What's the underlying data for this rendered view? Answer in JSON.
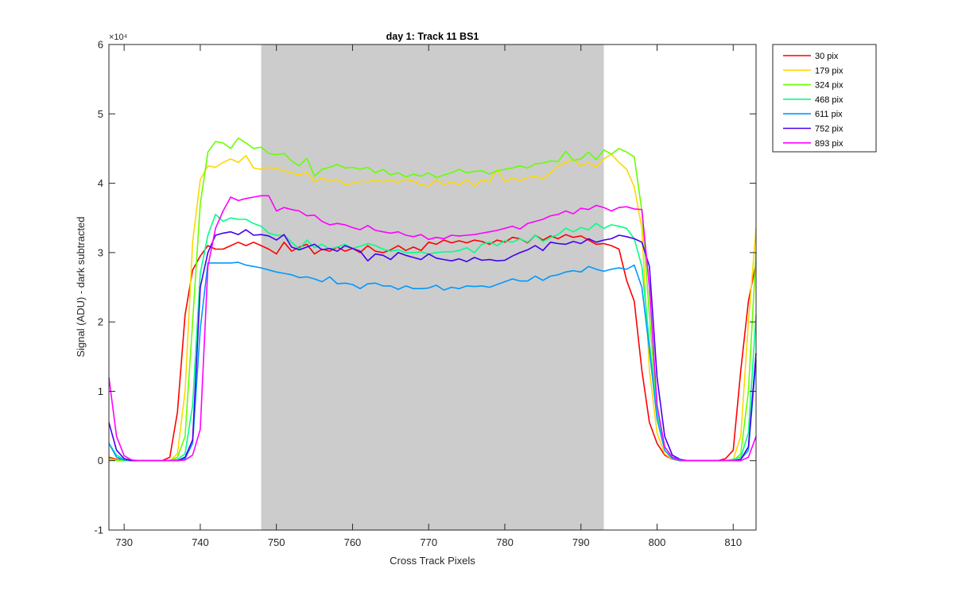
{
  "chart_data": {
    "type": "line",
    "title": "day 1: Track 11  BS1",
    "xlabel": "Cross Track Pixels",
    "ylabel": "Signal (ADU) - dark subtracted",
    "xlim": [
      728,
      813
    ],
    "ylim": [
      -10000,
      60000
    ],
    "exponent_label": "×10⁴",
    "x_ticks": [
      730,
      740,
      750,
      760,
      770,
      780,
      790,
      800,
      810
    ],
    "x_tick_labels": [
      "730",
      "740",
      "750",
      "760",
      "770",
      "780",
      "790",
      "800",
      "810"
    ],
    "y_ticks": [
      -10000,
      0,
      10000,
      20000,
      30000,
      40000,
      50000,
      60000
    ],
    "y_tick_labels": [
      "-1",
      "0",
      "1",
      "2",
      "3",
      "4",
      "5",
      "6"
    ],
    "grid": false,
    "legend_position": "outside-top-right",
    "shaded_region": {
      "x": [
        748,
        793
      ],
      "color": "#cccccc"
    },
    "x": [
      728,
      729,
      730,
      731,
      732,
      733,
      734,
      735,
      736,
      737,
      738,
      739,
      740,
      741,
      742,
      743,
      744,
      745,
      746,
      747,
      748,
      749,
      750,
      751,
      752,
      753,
      754,
      755,
      756,
      757,
      758,
      759,
      760,
      761,
      762,
      763,
      764,
      765,
      766,
      767,
      768,
      769,
      770,
      771,
      772,
      773,
      774,
      775,
      776,
      777,
      778,
      779,
      780,
      781,
      782,
      783,
      784,
      785,
      786,
      787,
      788,
      789,
      790,
      791,
      792,
      793,
      794,
      795,
      796,
      797,
      798,
      799,
      800,
      801,
      802,
      803,
      804,
      805,
      806,
      807,
      808,
      809,
      810,
      811,
      812,
      813
    ],
    "series": [
      {
        "name": "30 pix",
        "color": "#ff0000",
        "values": [
          500,
          200,
          100,
          0,
          0,
          0,
          0,
          0,
          500,
          7000,
          21000,
          27500,
          29500,
          31000,
          30500,
          30500,
          31000,
          31500,
          31000,
          31500,
          31000,
          30500,
          29800,
          31500,
          30200,
          30800,
          31200,
          29800,
          30500,
          30200,
          30800,
          30200,
          30600,
          30000,
          31000,
          30200,
          30000,
          30400,
          31000,
          30300,
          30800,
          30300,
          31500,
          31200,
          31800,
          31400,
          31700,
          31400,
          31800,
          31600,
          31200,
          31800,
          31500,
          32200,
          32000,
          31400,
          32500,
          31800,
          32400,
          32000,
          32600,
          32200,
          32400,
          31800,
          31200,
          31300,
          31000,
          30500,
          26000,
          23000,
          13000,
          5500,
          2500,
          800,
          200,
          0,
          0,
          0,
          0,
          0,
          0,
          300,
          1500,
          13000,
          23000,
          28500
        ]
      },
      {
        "name": "179 pix",
        "color": "#ffd700",
        "values": [
          300,
          100,
          0,
          0,
          0,
          0,
          0,
          0,
          0,
          1000,
          10000,
          31500,
          40500,
          42500,
          42300,
          43000,
          43500,
          43000,
          44000,
          42200,
          42000,
          42300,
          42100,
          41800,
          41500,
          41200,
          41600,
          40200,
          40800,
          40200,
          40600,
          39800,
          40000,
          40300,
          40200,
          40500,
          40200,
          40500,
          40100,
          40600,
          40300,
          39800,
          39600,
          40500,
          39800,
          40200,
          39800,
          40500,
          39600,
          40500,
          40200,
          42000,
          40200,
          40800,
          40400,
          40800,
          41000,
          40600,
          41500,
          42500,
          43000,
          43500,
          42500,
          43000,
          42300,
          43500,
          44200,
          43000,
          42000,
          39500,
          33500,
          13000,
          4000,
          1000,
          200,
          0,
          0,
          0,
          0,
          0,
          0,
          0,
          200,
          3500,
          20000,
          33500
        ]
      },
      {
        "name": "324 pix",
        "color": "#66ff00",
        "values": [
          200,
          50,
          0,
          0,
          0,
          0,
          0,
          0,
          0,
          500,
          3500,
          20000,
          37000,
          44500,
          46000,
          45800,
          45000,
          46500,
          45800,
          45000,
          45200,
          44300,
          44100,
          44300,
          43200,
          42500,
          43600,
          41000,
          42000,
          42300,
          42700,
          42200,
          42300,
          42000,
          42300,
          41500,
          42000,
          41200,
          41500,
          40900,
          41300,
          41000,
          41500,
          40800,
          41200,
          41500,
          42000,
          41500,
          41700,
          41800,
          41300,
          41800,
          42000,
          42200,
          42500,
          42200,
          42800,
          42900,
          43200,
          43100,
          44600,
          43300,
          43500,
          44500,
          43400,
          44800,
          44200,
          45000,
          44500,
          43800,
          36000,
          21000,
          7000,
          2000,
          500,
          0,
          0,
          0,
          0,
          0,
          0,
          0,
          0,
          1000,
          10000,
          30000
        ]
      },
      {
        "name": "468 pix",
        "color": "#00ff88",
        "values": [
          2500,
          800,
          200,
          0,
          0,
          0,
          0,
          0,
          0,
          200,
          1000,
          8000,
          27000,
          32500,
          35500,
          34500,
          35000,
          34800,
          34800,
          34200,
          33800,
          32800,
          32500,
          32500,
          31500,
          30500,
          31800,
          30700,
          31200,
          30500,
          30800,
          31200,
          30600,
          30900,
          31300,
          31000,
          30500,
          30200,
          30400,
          30000,
          30000,
          30100,
          29800,
          30000,
          30100,
          30100,
          30300,
          30700,
          30000,
          31200,
          31500,
          31000,
          31700,
          31500,
          32000,
          31500,
          32500,
          31600,
          32200,
          32600,
          33500,
          33000,
          33600,
          33300,
          34200,
          33500,
          34000,
          33800,
          33500,
          32000,
          28000,
          17000,
          7000,
          2000,
          500,
          0,
          0,
          0,
          0,
          0,
          0,
          0,
          200,
          500,
          4000,
          21000
        ]
      },
      {
        "name": "611 pix",
        "color": "#0099ff",
        "values": [
          2500,
          500,
          100,
          0,
          0,
          0,
          0,
          0,
          0,
          0,
          300,
          2500,
          19000,
          28500,
          28500,
          28500,
          28500,
          28600,
          28200,
          28000,
          27800,
          27500,
          27200,
          27000,
          26800,
          26400,
          26500,
          26200,
          25800,
          26500,
          25500,
          25600,
          25400,
          24800,
          25500,
          25600,
          25200,
          25200,
          24700,
          25200,
          24800,
          24800,
          24900,
          25300,
          24600,
          25000,
          24800,
          25200,
          25100,
          25200,
          25000,
          25400,
          25800,
          26200,
          25900,
          25900,
          26600,
          26000,
          26600,
          26800,
          27200,
          27400,
          27200,
          28000,
          27600,
          27300,
          27600,
          27800,
          27600,
          28200,
          25000,
          16000,
          6000,
          1500,
          300,
          0,
          0,
          0,
          0,
          0,
          0,
          0,
          0,
          200,
          1500,
          14500
        ]
      },
      {
        "name": "752 pix",
        "color": "#4400ee",
        "values": [
          5500,
          1500,
          300,
          0,
          0,
          0,
          0,
          0,
          0,
          0,
          500,
          3000,
          25000,
          30000,
          32500,
          32800,
          33000,
          32600,
          33300,
          32500,
          32600,
          32400,
          31800,
          32600,
          30800,
          30400,
          30800,
          31200,
          30400,
          30600,
          30200,
          31000,
          30600,
          30200,
          28800,
          29800,
          29600,
          29000,
          30000,
          29600,
          29300,
          29000,
          29800,
          29200,
          29000,
          28800,
          29100,
          28700,
          29300,
          28900,
          29000,
          28800,
          28900,
          29500,
          30000,
          30400,
          31000,
          30300,
          31500,
          31300,
          31200,
          31600,
          31300,
          32000,
          31500,
          31800,
          32000,
          32500,
          32300,
          32000,
          31500,
          28000,
          12000,
          3500,
          800,
          200,
          0,
          0,
          0,
          0,
          0,
          0,
          0,
          200,
          2000,
          15500
        ]
      },
      {
        "name": "893 pix",
        "color": "#ff00ff",
        "values": [
          12000,
          3500,
          700,
          100,
          0,
          0,
          0,
          0,
          0,
          0,
          100,
          800,
          4500,
          28000,
          33500,
          36000,
          38000,
          37500,
          37800,
          38000,
          38200,
          38200,
          36000,
          36500,
          36200,
          36000,
          35300,
          35400,
          34500,
          34000,
          34200,
          34000,
          33600,
          33300,
          33900,
          33200,
          33000,
          32800,
          33000,
          32500,
          32300,
          32600,
          31900,
          32200,
          32000,
          32500,
          32400,
          32500,
          32600,
          32800,
          33000,
          33200,
          33500,
          33800,
          33400,
          34200,
          34500,
          34800,
          35300,
          35500,
          36000,
          35600,
          36400,
          36200,
          36800,
          36500,
          36000,
          36500,
          36600,
          36300,
          36200,
          25000,
          8000,
          2000,
          500,
          100,
          0,
          0,
          0,
          0,
          0,
          0,
          0,
          0,
          500,
          3500
        ]
      }
    ]
  }
}
